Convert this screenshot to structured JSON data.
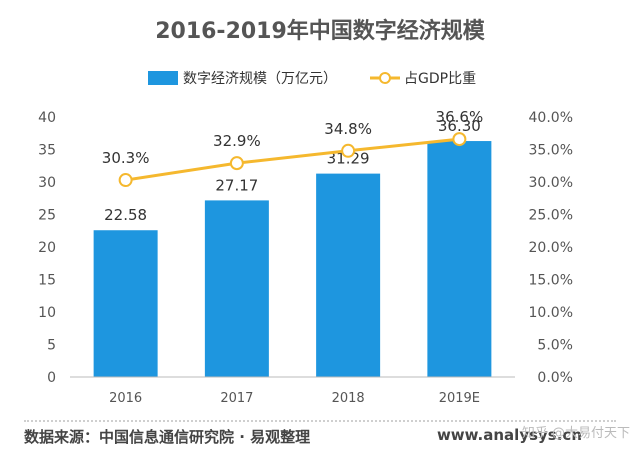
{
  "chart_data": {
    "type": "bar+line",
    "title": "2016-2019年中国数字经济规模",
    "categories": [
      "2016",
      "2017",
      "2018",
      "2019E"
    ],
    "series": [
      {
        "name": "数字经济规模（万亿元）",
        "type": "bar",
        "axis": "left",
        "values": [
          22.58,
          27.17,
          31.29,
          36.3
        ],
        "labels": [
          "22.58",
          "27.17",
          "31.29",
          "36.30"
        ],
        "color": "#1E96DF"
      },
      {
        "name": "占GDP比重",
        "type": "line",
        "axis": "right",
        "values": [
          30.3,
          32.9,
          34.8,
          36.6
        ],
        "labels": [
          "30.3%",
          "32.9%",
          "34.8%",
          "36.6%"
        ],
        "color": "#F5B82E"
      }
    ],
    "y_left": {
      "range": [
        0,
        40
      ],
      "ticks": [
        0,
        5,
        10,
        15,
        20,
        25,
        30,
        35,
        40
      ],
      "tick_labels": [
        "0",
        "5",
        "10",
        "15",
        "20",
        "25",
        "30",
        "35",
        "40"
      ]
    },
    "y_right": {
      "range": [
        0,
        40
      ],
      "ticks": [
        0,
        5,
        10,
        15,
        20,
        25,
        30,
        35,
        40
      ],
      "tick_labels": [
        "0.0%",
        "5.0%",
        "10.0%",
        "15.0%",
        "20.0%",
        "25.0%",
        "30.0%",
        "35.0%",
        "40.0%"
      ]
    },
    "legend_position": "top-center",
    "grid": false
  },
  "footer": {
    "source": "数据来源：中国信息通信研究院 · 易观整理",
    "website": "www.analysys.cn",
    "watermark": "知乎 @大易付天下"
  },
  "colors": {
    "bar": "#1E96DF",
    "line": "#F5B82E",
    "axis": "#BBBBBB"
  }
}
